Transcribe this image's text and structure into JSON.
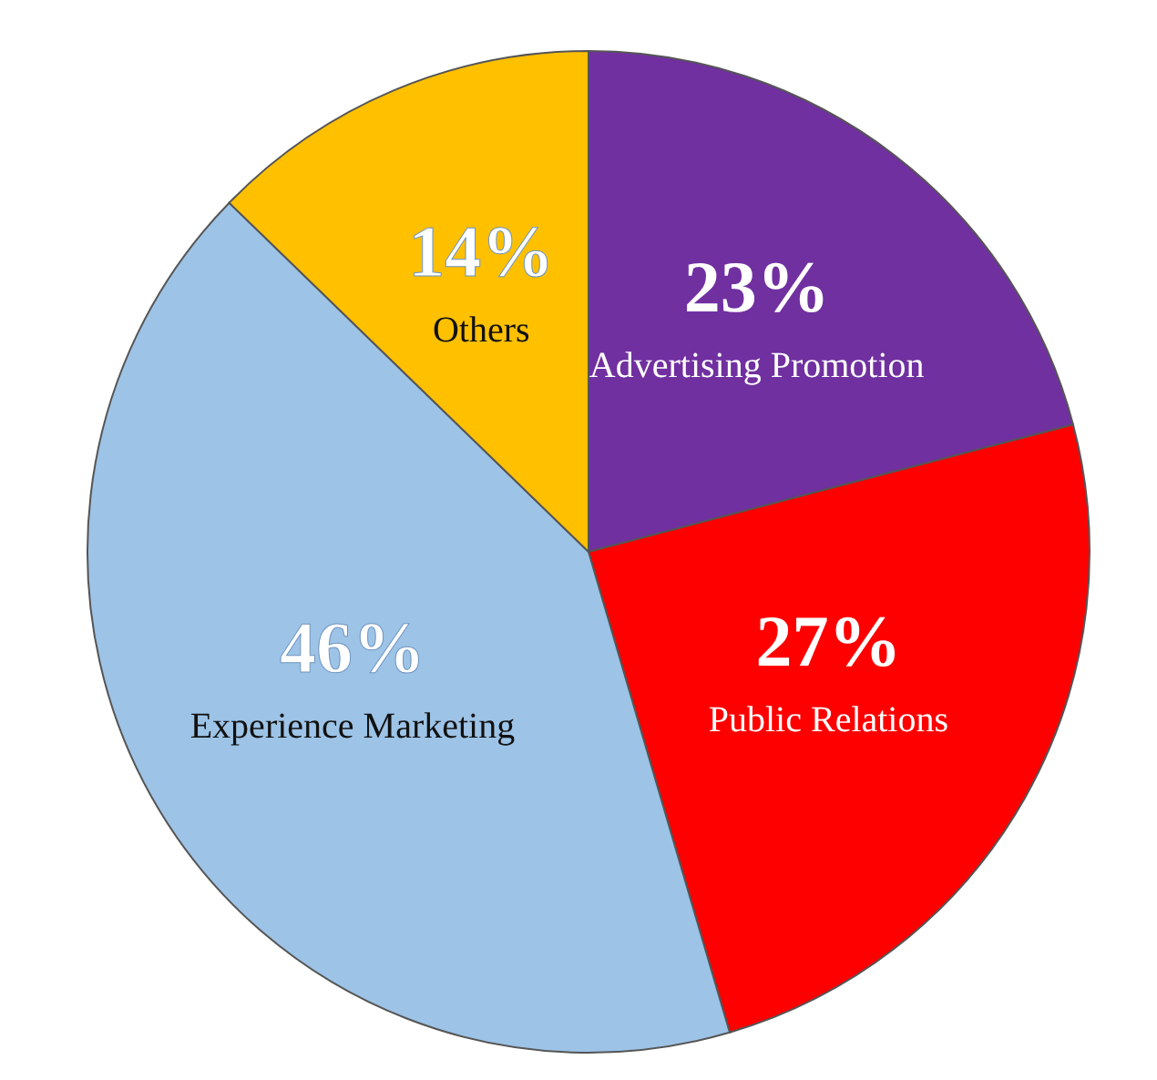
{
  "chart_data": {
    "type": "pie",
    "categories": [
      "Advertising Promotion",
      "Public Relations",
      "Experience Marketing",
      "Others"
    ],
    "values": [
      23,
      27,
      46,
      14
    ],
    "value_labels": [
      "23%",
      "27%",
      "46%",
      "14%"
    ],
    "colors": [
      "#7030a0",
      "#ff0000",
      "#9dc3e6",
      "#ffc000"
    ],
    "legend": false
  }
}
